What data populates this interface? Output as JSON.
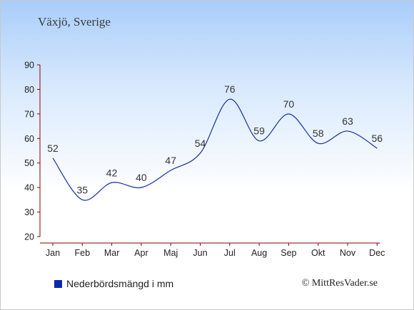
{
  "chart_data": {
    "type": "line",
    "title": "Växjö, Sverige",
    "categories": [
      "Jan",
      "Feb",
      "Mar",
      "Apr",
      "Maj",
      "Jun",
      "Jul",
      "Aug",
      "Sep",
      "Okt",
      "Nov",
      "Dec"
    ],
    "series": [
      {
        "name": "Nederbördsmängd i mm",
        "values": [
          52,
          35,
          42,
          40,
          47,
          54,
          76,
          59,
          70,
          58,
          63,
          56
        ]
      }
    ],
    "ylim": [
      20,
      90
    ],
    "yticks": [
      20,
      30,
      40,
      50,
      60,
      70,
      80,
      90
    ],
    "grid": false,
    "legend_position": "bottom-left",
    "line_color": "#1a2fa0",
    "axis_color": "#8b0000"
  },
  "copyright": "© MittResVader.se"
}
